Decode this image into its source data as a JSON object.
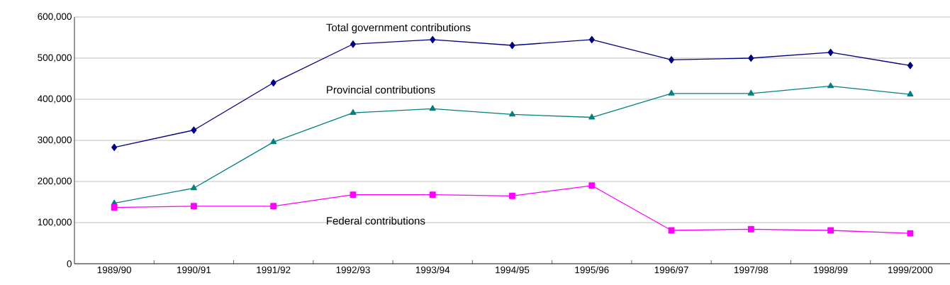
{
  "chart_data": {
    "type": "line",
    "categories": [
      "1989/90",
      "1990/91",
      "1991/92",
      "1992/93",
      "1993/94",
      "1994/95",
      "1995/96",
      "1996/97",
      "1997/98",
      "1998/99",
      "1999/2000"
    ],
    "series": [
      {
        "name": "Total government contributions",
        "color": "#000080",
        "marker": "diamond",
        "values": [
          283000,
          325000,
          440000,
          534000,
          545000,
          531000,
          545000,
          496000,
          500000,
          514000,
          482000
        ]
      },
      {
        "name": "Provincial contributions",
        "color": "#008080",
        "marker": "triangle",
        "values": [
          147000,
          184000,
          296000,
          367000,
          377000,
          363000,
          356000,
          414000,
          414000,
          432000,
          412000
        ]
      },
      {
        "name": "Federal contributions",
        "color": "#ff00ff",
        "marker": "square",
        "values": [
          137000,
          140000,
          140000,
          168000,
          168000,
          165000,
          190000,
          81000,
          84000,
          81000,
          74000
        ]
      }
    ],
    "ylim": [
      0,
      600000
    ],
    "yticks": [
      0,
      {
        "value": 100000,
        "label": "100,000"
      },
      {
        "value": 200000,
        "label": "200,000"
      },
      {
        "value": 300000,
        "label": "300,000"
      },
      {
        "value": 400000,
        "label": "400,000"
      },
      {
        "value": 500000,
        "label": "500,000"
      },
      {
        "value": 600000,
        "label": "600,000"
      }
    ],
    "grid": "y",
    "line_style": "solid"
  }
}
